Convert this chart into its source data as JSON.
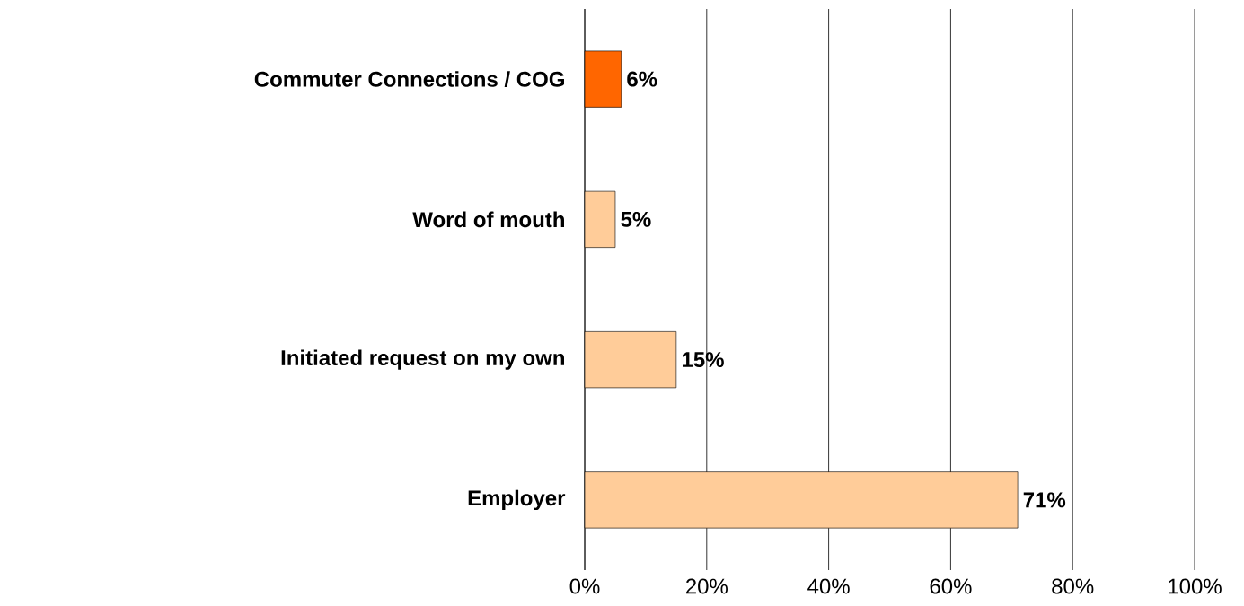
{
  "chart_data": {
    "type": "bar",
    "orientation": "horizontal",
    "categories": [
      "Commuter Connections / COG",
      "Word of mouth",
      "Initiated request on my own",
      "Employer"
    ],
    "values": [
      6,
      5,
      15,
      71
    ],
    "colors": [
      "#ff6600",
      "#ffcc99",
      "#ffcc99",
      "#ffcc99"
    ],
    "value_labels": [
      "6%",
      "5%",
      "15%",
      "71%"
    ],
    "xlim": [
      0,
      100
    ],
    "xticks": [
      {
        "value": 0,
        "label": "0%"
      },
      {
        "value": 20,
        "label": "20%"
      },
      {
        "value": 40,
        "label": "40%"
      },
      {
        "value": 60,
        "label": "60%"
      },
      {
        "value": 80,
        "label": "80%"
      },
      {
        "value": 100,
        "label": "100%"
      }
    ],
    "grid": "x"
  }
}
